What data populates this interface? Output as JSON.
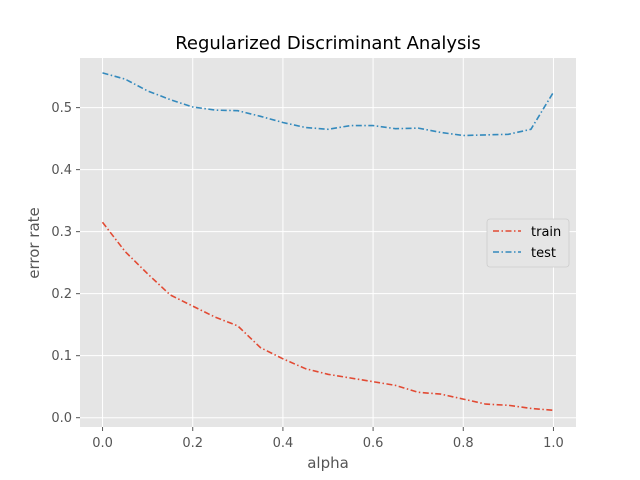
{
  "chart_data": {
    "type": "line",
    "title": "Regularized Discriminant Analysis",
    "xlabel": "alpha",
    "ylabel": "error rate",
    "xlim": [
      -0.05,
      1.05
    ],
    "ylim": [
      -0.015,
      0.58
    ],
    "xticks": [
      0.0,
      0.2,
      0.4,
      0.6,
      0.8,
      1.0
    ],
    "xtick_labels": [
      "0.0",
      "0.2",
      "0.4",
      "0.6",
      "0.8",
      "1.0"
    ],
    "yticks": [
      0.0,
      0.1,
      0.2,
      0.3,
      0.4,
      0.5
    ],
    "ytick_labels": [
      "0.0",
      "0.1",
      "0.2",
      "0.3",
      "0.4",
      "0.5"
    ],
    "grid": true,
    "legend_position": "right",
    "x": [
      0.0,
      0.05,
      0.1,
      0.15,
      0.2,
      0.25,
      0.3,
      0.35,
      0.4,
      0.45,
      0.5,
      0.55,
      0.6,
      0.65,
      0.7,
      0.75,
      0.8,
      0.85,
      0.9,
      0.95,
      1.0
    ],
    "series": [
      {
        "name": "train",
        "color": "#E24A33",
        "values": [
          0.315,
          0.268,
          0.232,
          0.198,
          0.18,
          0.162,
          0.148,
          0.113,
          0.095,
          0.079,
          0.07,
          0.064,
          0.058,
          0.052,
          0.041,
          0.038,
          0.03,
          0.022,
          0.02,
          0.015,
          0.012
        ]
      },
      {
        "name": "test",
        "color": "#348ABD",
        "values": [
          0.556,
          0.546,
          0.527,
          0.513,
          0.501,
          0.496,
          0.495,
          0.486,
          0.476,
          0.468,
          0.465,
          0.471,
          0.471,
          0.466,
          0.467,
          0.46,
          0.455,
          0.456,
          0.457,
          0.465,
          0.525
        ]
      }
    ]
  }
}
